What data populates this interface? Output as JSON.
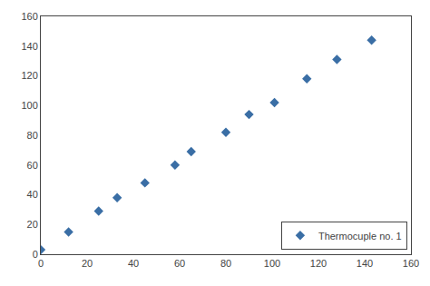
{
  "chart_data": {
    "type": "scatter",
    "x": [
      0,
      12,
      25,
      33,
      45,
      58,
      65,
      80,
      90,
      101,
      115,
      128,
      143
    ],
    "series": [
      {
        "name": "Thermocuple no. 1",
        "color": "#3a6ea5",
        "marker": "diamond",
        "values": [
          3,
          15,
          29,
          38,
          48,
          60,
          69,
          82,
          94,
          102,
          118,
          131,
          144
        ]
      }
    ],
    "xlim": [
      0,
      160
    ],
    "ylim": [
      0,
      160
    ],
    "xticks": [
      0,
      20,
      40,
      60,
      80,
      100,
      120,
      140,
      160
    ],
    "yticks": [
      0,
      20,
      40,
      60,
      80,
      100,
      120,
      140,
      160
    ],
    "grid": false,
    "legend": "lower right"
  }
}
